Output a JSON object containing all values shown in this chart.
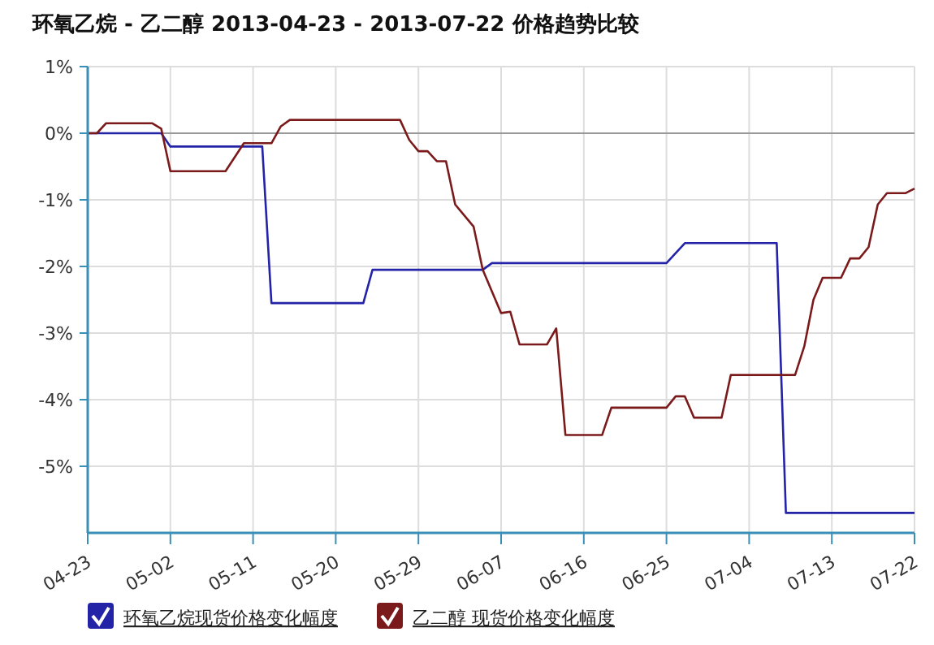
{
  "chart_data": {
    "type": "line",
    "title": "环氧乙烷 - 乙二醇 2013-04-23 - 2013-07-22 价格趋势比较",
    "x": [
      "2013-04-23",
      "2013-04-30",
      "2013-05-01",
      "2013-05-02",
      "2013-05-12",
      "2013-05-13",
      "2013-05-23",
      "2013-05-24",
      "2013-06-05",
      "2013-06-06",
      "2013-06-25",
      "2013-06-27",
      "2013-07-07",
      "2013-07-08",
      "2013-07-22"
    ],
    "series": [
      {
        "name": "环氧乙烷现货价格变化幅度",
        "color": "#2323a8",
        "values": [
          0,
          0,
          0,
          -0.2,
          -0.2,
          -2.55,
          -2.55,
          -2.05,
          -2.05,
          -1.95,
          -1.95,
          -1.65,
          -1.65,
          -5.7,
          -5.7
        ]
      },
      {
        "name": "乙二醇 现货价格变化幅度",
        "color": "#7b1a1a",
        "x": [
          "2013-04-23",
          "2013-04-24",
          "2013-04-25",
          "2013-04-30",
          "2013-05-01",
          "2013-05-02",
          "2013-05-08",
          "2013-05-10",
          "2013-05-13",
          "2013-05-14",
          "2013-05-15",
          "2013-05-27",
          "2013-05-28",
          "2013-05-29",
          "2013-05-30",
          "2013-05-31",
          "2013-06-01",
          "2013-06-02",
          "2013-06-04",
          "2013-06-05",
          "2013-06-07",
          "2013-06-08",
          "2013-06-09",
          "2013-06-12",
          "2013-06-13",
          "2013-06-14",
          "2013-06-18",
          "2013-06-19",
          "2013-06-25",
          "2013-06-26",
          "2013-06-27",
          "2013-06-28",
          "2013-07-01",
          "2013-07-02",
          "2013-07-09",
          "2013-07-10",
          "2013-07-11",
          "2013-07-12",
          "2013-07-14",
          "2013-07-15",
          "2013-07-16",
          "2013-07-17",
          "2013-07-18",
          "2013-07-19",
          "2013-07-21",
          "2013-07-22"
        ],
        "values": [
          0,
          0,
          0.15,
          0.15,
          0.07,
          -0.57,
          -0.57,
          -0.15,
          -0.15,
          0.1,
          0.2,
          0.2,
          -0.1,
          -0.27,
          -0.27,
          -0.42,
          -0.42,
          -1.07,
          -1.4,
          -2.05,
          -2.7,
          -2.68,
          -3.17,
          -3.17,
          -2.93,
          -4.53,
          -4.53,
          -4.12,
          -4.12,
          -3.95,
          -3.95,
          -4.27,
          -4.27,
          -3.63,
          -3.63,
          -3.2,
          -2.5,
          -2.17,
          -2.17,
          -1.88,
          -1.88,
          -1.71,
          -1.07,
          -0.9,
          -0.9,
          -0.83
        ]
      }
    ],
    "xlim": [
      "2013-04-23",
      "2013-07-22"
    ],
    "xticks": [
      {
        "value": "2013-04-23",
        "label": "04-23"
      },
      {
        "value": "2013-05-02",
        "label": "05-02"
      },
      {
        "value": "2013-05-11",
        "label": "05-11"
      },
      {
        "value": "2013-05-20",
        "label": "05-20"
      },
      {
        "value": "2013-05-29",
        "label": "05-29"
      },
      {
        "value": "2013-06-07",
        "label": "06-07"
      },
      {
        "value": "2013-06-16",
        "label": "06-16"
      },
      {
        "value": "2013-06-25",
        "label": "06-25"
      },
      {
        "value": "2013-07-04",
        "label": "07-04"
      },
      {
        "value": "2013-07-13",
        "label": "07-13"
      },
      {
        "value": "2013-07-22",
        "label": "07-22"
      }
    ],
    "ylim": [
      -6,
      1
    ],
    "yticks": [
      {
        "value": 1,
        "label": "1%"
      },
      {
        "value": 0,
        "label": "0%"
      },
      {
        "value": -1,
        "label": "-1%"
      },
      {
        "value": -2,
        "label": "-2%"
      },
      {
        "value": -3,
        "label": "-3%"
      },
      {
        "value": -4,
        "label": "-4%"
      },
      {
        "value": -5,
        "label": "-5%"
      }
    ],
    "ref_lines": [
      {
        "axis": "y",
        "value": 0,
        "color": "#999999"
      }
    ],
    "grid": true,
    "legend": "bottom"
  }
}
